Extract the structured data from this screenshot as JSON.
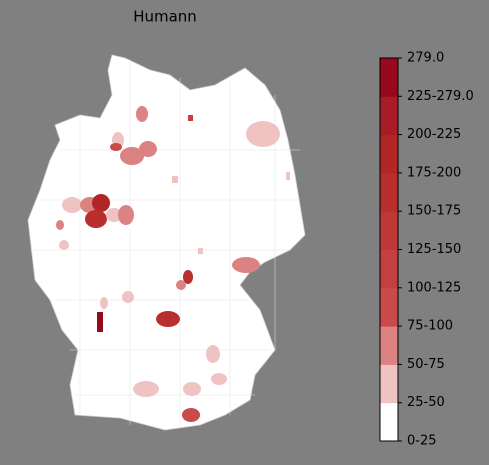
{
  "title": "Humann",
  "colorbar": {
    "labels": [
      "0-25",
      "25-50",
      "50-75",
      "75-100",
      "100-125",
      "125-150",
      "150-175",
      "175-200",
      "200-225",
      "225-279.0",
      "279.0"
    ],
    "colors": [
      "#ffffff",
      "#f0c3c3",
      "#dc8282",
      "#c94a4a",
      "#c44040",
      "#bf3737",
      "#b92e2e",
      "#b22626",
      "#a81c28",
      "#99091e"
    ]
  }
}
